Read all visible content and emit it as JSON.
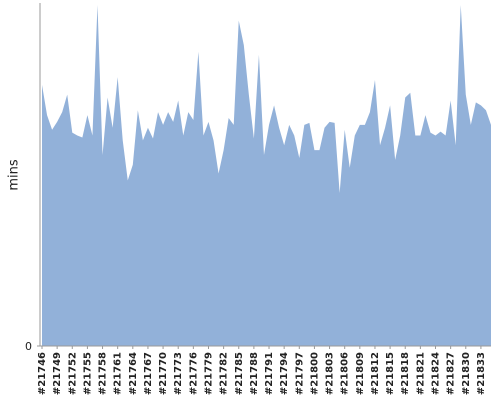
{
  "chart_data": {
    "type": "area",
    "y_label": "mins",
    "color": "#92b1d9",
    "categories": [
      "#21746",
      null,
      null,
      "#21749",
      null,
      null,
      "#21752",
      null,
      null,
      "#21755",
      null,
      null,
      "#21758",
      null,
      null,
      "#21761",
      null,
      null,
      "#21764",
      null,
      null,
      "#21767",
      null,
      null,
      "#21770",
      null,
      null,
      "#21773",
      null,
      null,
      "#21776",
      null,
      null,
      "#21779",
      null,
      null,
      "#21782",
      null,
      null,
      "#21785",
      null,
      null,
      "#21788",
      null,
      null,
      "#21791",
      null,
      null,
      "#21794",
      null,
      null,
      "#21797",
      null,
      null,
      "#21800",
      null,
      null,
      "#21803",
      null,
      null,
      "#21806",
      null,
      null,
      "#21809",
      null,
      null,
      "#21812",
      null,
      null,
      "#21815",
      null,
      null,
      "#21818",
      null,
      null,
      "#21821",
      null,
      null,
      "#21824",
      null,
      null,
      "#21827",
      null,
      null,
      "#21830",
      null,
      null,
      "#21833",
      null,
      null
    ],
    "values": [
      26.8,
      23.7,
      22.2,
      23.0,
      24.0,
      25.8,
      21.9,
      21.6,
      21.4,
      23.7,
      21.6,
      35,
      19.6,
      25.5,
      22.4,
      27.6,
      21.1,
      17.0,
      18.6,
      24.2,
      21.1,
      22.4,
      21.3,
      24.0,
      22.7,
      24.0,
      23.0,
      25.2,
      21.6,
      24.0,
      23.2,
      30.2,
      21.6,
      23.0,
      21.1,
      17.7,
      20.1,
      23.4,
      22.7,
      33.4,
      30.9,
      25.8,
      21.3,
      29.9,
      19.6,
      22.7,
      24.7,
      22.4,
      20.6,
      22.7,
      21.6,
      19.3,
      22.7,
      22.9,
      20.1,
      20.1,
      22.4,
      23.0,
      22.9,
      15.7,
      22.2,
      18.3,
      21.6,
      22.7,
      22.7,
      24.0,
      27.3,
      20.6,
      22.4,
      24.7,
      19.1,
      21.6,
      25.5,
      26.0,
      21.6,
      21.6,
      23.7,
      21.9,
      21.6,
      22.0,
      21.6,
      25.2,
      20.6,
      35.0,
      25.8,
      22.7,
      25.0,
      24.7,
      24.2,
      22.7
    ],
    "ylim": [
      0,
      35
    ],
    "yticks": [
      0
    ]
  }
}
